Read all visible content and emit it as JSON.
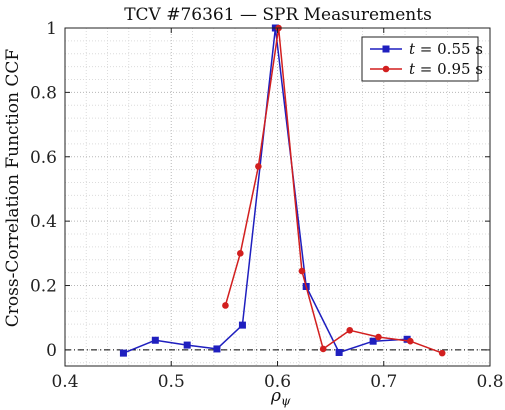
{
  "chart_data": {
    "type": "line",
    "title": "TCV #76361 — SPR Measurements",
    "xlabel": "ρ",
    "xlabel_sub": "ψ",
    "ylabel": "Cross-Correlation Function CCF",
    "xlim": [
      0.4,
      0.8
    ],
    "ylim": [
      -0.05,
      1.0
    ],
    "xticks": [
      0.4,
      0.5,
      0.6,
      0.7,
      0.8
    ],
    "xtick_labels": [
      "0.4",
      "0.5",
      "0.6",
      "0.7",
      "0.8"
    ],
    "yticks": [
      0,
      0.2,
      0.4,
      0.6,
      0.8,
      1
    ],
    "ytick_labels": [
      "0",
      "0.2",
      "0.4",
      "0.6",
      "0.8",
      "1"
    ],
    "grid": "major and minor, dotted",
    "reference_line": {
      "y": 0,
      "style": "dash-dot",
      "color": "#000000"
    },
    "legend_position": "top-right",
    "series": [
      {
        "name": "t = 0.55 s",
        "name_var": "t",
        "name_rest": " = 0.55 s",
        "color": "#1f1fbf",
        "marker": "square",
        "x": [
          0.455,
          0.485,
          0.515,
          0.543,
          0.567,
          0.598,
          0.627,
          0.658,
          0.69,
          0.722
        ],
        "y": [
          -0.01,
          0.03,
          0.015,
          0.003,
          0.077,
          1.0,
          0.197,
          -0.008,
          0.027,
          0.033
        ]
      },
      {
        "name": "t = 0.95 s",
        "name_var": "t",
        "name_rest": " = 0.95 s",
        "color": "#d21f1f",
        "marker": "circle",
        "x": [
          0.551,
          0.565,
          0.582,
          0.601,
          0.623,
          0.643,
          0.668,
          0.695,
          0.725,
          0.755
        ],
        "y": [
          0.138,
          0.3,
          0.57,
          1.0,
          0.245,
          0.003,
          0.061,
          0.04,
          0.027,
          -0.01
        ]
      }
    ]
  }
}
